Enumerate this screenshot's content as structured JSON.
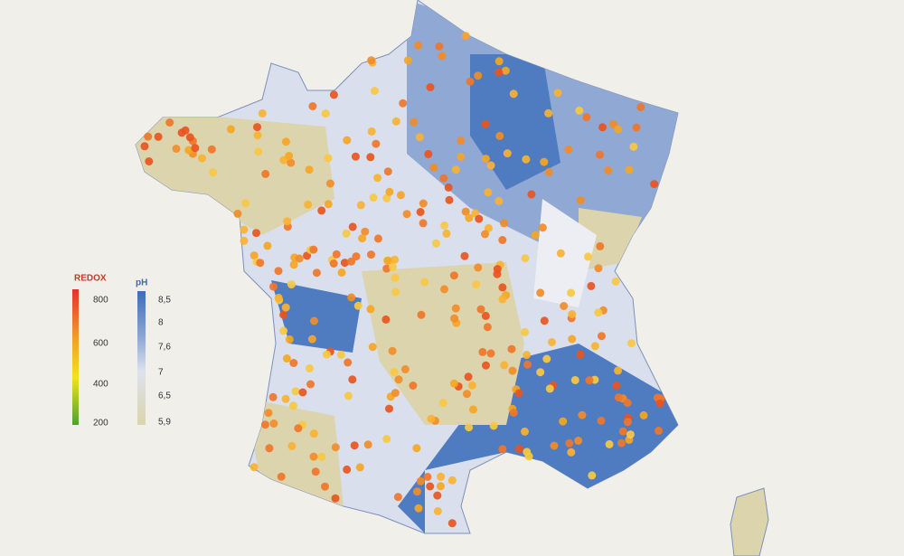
{
  "legend": {
    "redox": {
      "title": "REDOX",
      "labels": [
        "800",
        "600",
        "400",
        "200"
      ]
    },
    "ph": {
      "title": "pH",
      "labels": [
        "8,5",
        "8",
        "7,6",
        "7",
        "6,5",
        "5,9"
      ]
    }
  }
}
